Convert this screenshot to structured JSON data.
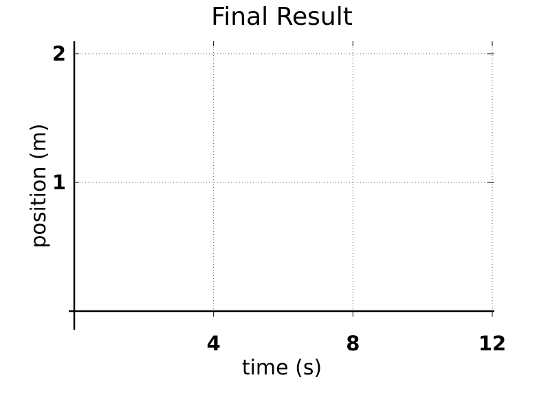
{
  "chart_data": {
    "type": "line",
    "title": "Final Result",
    "xlabel": "time (s)",
    "ylabel": "position (m)",
    "xlim": [
      0,
      12
    ],
    "ylim": [
      0,
      2.1
    ],
    "xticks": [
      4,
      8,
      12
    ],
    "xtick_labels": [
      "4",
      "8",
      "12"
    ],
    "yticks": [
      1,
      2
    ],
    "ytick_labels": [
      "1",
      "2"
    ],
    "grid": true,
    "series": []
  },
  "colors": {
    "axis": "#000000",
    "grid": "#555555"
  }
}
